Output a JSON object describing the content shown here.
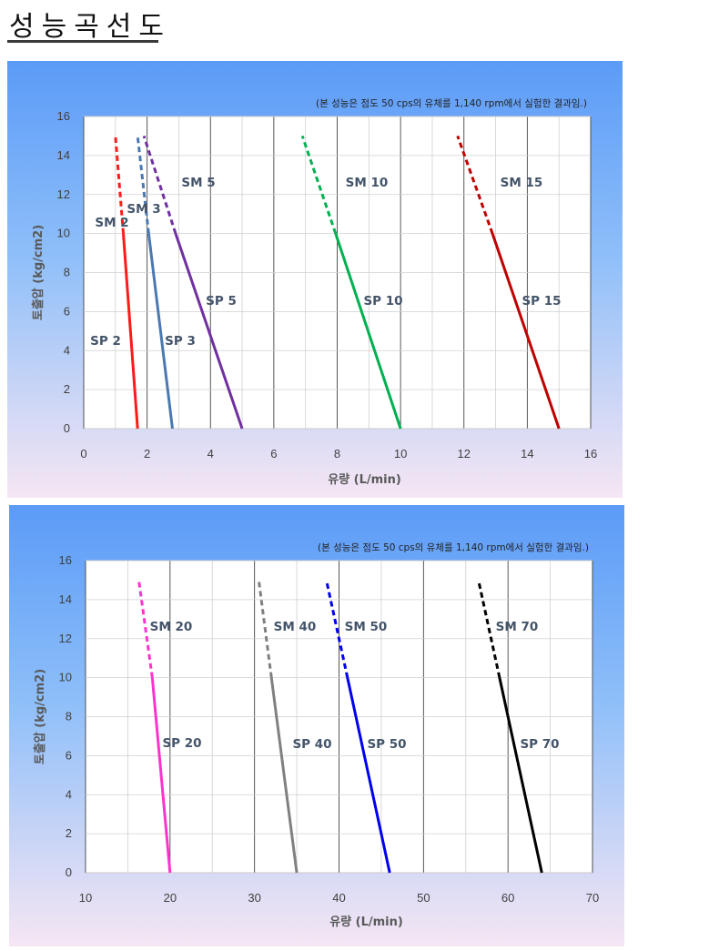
{
  "page": {
    "title": "성능곡선도"
  },
  "colors": {
    "panel_top": "#5b9bf7",
    "panel_mid": "#8fbff9",
    "panel_bottom": "#f6e6f4",
    "plot_bg": "#ffffff",
    "grid": "#d0d0d0",
    "grid_major": "#444444"
  },
  "chart_data": [
    {
      "type": "line",
      "note": "(본 성능은 점도 50 cps의 유체를 1,140 rpm에서 실험한 결과임.)",
      "xlabel": "유량 (L/min)",
      "ylabel": "토출압 (kg/cm2)",
      "xlim": [
        0,
        16
      ],
      "ylim": [
        0,
        16
      ],
      "xticks": [
        "0",
        "2",
        "4",
        "6",
        "8",
        "10",
        "12",
        "14",
        "16"
      ],
      "yticks": [
        "0",
        "2",
        "4",
        "6",
        "8",
        "10",
        "12",
        "14",
        "16"
      ],
      "grid": true,
      "series": [
        {
          "sm_label": "SM 2",
          "sp_label": "SP 2",
          "color": "#ff1a1a",
          "solid": [
            [
              1.7,
              0
            ],
            [
              1.25,
              10
            ]
          ],
          "dashed": [
            [
              1.25,
              10
            ],
            [
              1.0,
              15
            ]
          ]
        },
        {
          "sm_label": "SM 3",
          "sp_label": "SP 3",
          "color": "#4a78b0",
          "solid": [
            [
              2.8,
              0
            ],
            [
              2.05,
              10
            ]
          ],
          "dashed": [
            [
              2.05,
              10
            ],
            [
              1.7,
              15
            ]
          ]
        },
        {
          "sm_label": "SM 5",
          "sp_label": "SP 5",
          "color": "#7030a0",
          "solid": [
            [
              5.0,
              0
            ],
            [
              2.9,
              10
            ]
          ],
          "dashed": [
            [
              2.9,
              10
            ],
            [
              1.9,
              15
            ]
          ]
        },
        {
          "sm_label": "SM 10",
          "sp_label": "SP 10",
          "color": "#00b050",
          "solid": [
            [
              10.0,
              0
            ],
            [
              7.95,
              10
            ]
          ],
          "dashed": [
            [
              7.95,
              10
            ],
            [
              6.9,
              15
            ]
          ]
        },
        {
          "sm_label": "SM 15",
          "sp_label": "SP 15",
          "color": "#c00000",
          "solid": [
            [
              15.0,
              0
            ],
            [
              12.9,
              10
            ]
          ],
          "dashed": [
            [
              12.9,
              10
            ],
            [
              11.8,
              15
            ]
          ]
        }
      ]
    },
    {
      "type": "line",
      "note": "(본 성능은 점도 50 cps의 유체를 1,140 rpm에서 실험한 결과임.)",
      "xlabel": "유량 (L/min)",
      "ylabel": "토출압 (kg/cm2)",
      "xlim": [
        10,
        70
      ],
      "ylim": [
        0,
        16
      ],
      "xticks": [
        "10",
        "20",
        "30",
        "40",
        "50",
        "60",
        "70"
      ],
      "yticks": [
        "0",
        "2",
        "4",
        "6",
        "8",
        "10",
        "12",
        "14",
        "16"
      ],
      "grid": true,
      "series": [
        {
          "sm_label": "SM 20",
          "sp_label": "SP 20",
          "color": "#ff33cc",
          "solid": [
            [
              20.0,
              0
            ],
            [
              17.9,
              10
            ]
          ],
          "dashed": [
            [
              17.9,
              10
            ],
            [
              16.3,
              15
            ]
          ]
        },
        {
          "sm_label": "SM 40",
          "sp_label": "SP 40",
          "color": "#808080",
          "solid": [
            [
              35.0,
              0
            ],
            [
              32.0,
              10
            ]
          ],
          "dashed": [
            [
              32.0,
              10
            ],
            [
              30.5,
              15
            ]
          ]
        },
        {
          "sm_label": "SM 50",
          "sp_label": "SP 50",
          "color": "#0000ee",
          "solid": [
            [
              46.0,
              0
            ],
            [
              41.0,
              10
            ]
          ],
          "dashed": [
            [
              41.0,
              10
            ],
            [
              38.5,
              15
            ]
          ]
        },
        {
          "sm_label": "SM 70",
          "sp_label": "SP 70",
          "color": "#000000",
          "solid": [
            [
              64.0,
              0
            ],
            [
              59.0,
              10
            ]
          ],
          "dashed": [
            [
              59.0,
              10
            ],
            [
              56.5,
              15
            ]
          ]
        }
      ]
    }
  ]
}
